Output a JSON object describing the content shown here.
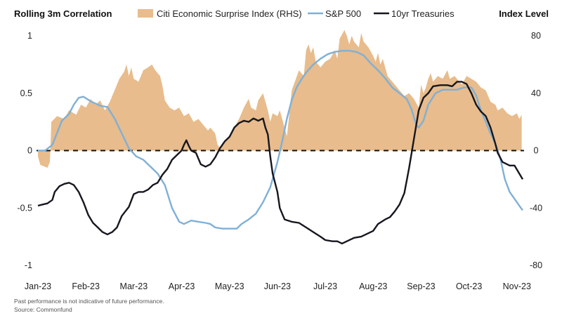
{
  "chart_data": {
    "type": "area+line",
    "title": "",
    "y_left_title": "Rolling 3m Correlation",
    "y_right_title": "Index Level",
    "y_left_ticks": [
      "1",
      "0.5",
      "0",
      "-0.5",
      "-1"
    ],
    "y_left_tick_values": [
      1,
      0.5,
      0,
      -0.5,
      -1
    ],
    "y_right_ticks": [
      "80",
      "40",
      "0",
      "-40",
      "-80"
    ],
    "y_right_tick_values": [
      80,
      40,
      0,
      -40,
      -80
    ],
    "ylim_left": [
      -1,
      1
    ],
    "ylim_right": [
      -80,
      80
    ],
    "x_tick_labels": [
      "Jan-23",
      "Feb-23",
      "Mar-23",
      "Apr-23",
      "May-23",
      "Jun-23",
      "Jul-23",
      "Aug-23",
      "Sep-23",
      "Oct-23",
      "Nov-23"
    ],
    "xlim": [
      0,
      10.15
    ],
    "zero_line": "dashed",
    "grid": false,
    "legend_position": "top",
    "series": [
      {
        "name": "Citi Economic Surprise Index (RHS)",
        "axis": "right",
        "kind": "area",
        "color": "#e8bc8c",
        "points": [
          [
            0,
            -4
          ],
          [
            0.05,
            -10
          ],
          [
            0.2,
            -12
          ],
          [
            0.25,
            -8
          ],
          [
            0.28,
            20
          ],
          [
            0.4,
            24
          ],
          [
            0.55,
            22
          ],
          [
            0.65,
            28
          ],
          [
            0.8,
            25
          ],
          [
            0.9,
            32
          ],
          [
            1.0,
            30
          ],
          [
            1.1,
            36
          ],
          [
            1.2,
            32
          ],
          [
            1.3,
            35
          ],
          [
            1.4,
            28
          ],
          [
            1.5,
            34
          ],
          [
            1.6,
            42
          ],
          [
            1.7,
            50
          ],
          [
            1.8,
            55
          ],
          [
            1.85,
            60
          ],
          [
            1.9,
            52
          ],
          [
            1.95,
            58
          ],
          [
            2.0,
            50
          ],
          [
            2.1,
            48
          ],
          [
            2.2,
            56
          ],
          [
            2.3,
            58
          ],
          [
            2.38,
            60
          ],
          [
            2.45,
            56
          ],
          [
            2.55,
            52
          ],
          [
            2.6,
            45
          ],
          [
            2.65,
            35
          ],
          [
            2.75,
            30
          ],
          [
            2.85,
            28
          ],
          [
            2.95,
            30
          ],
          [
            3.05,
            24
          ],
          [
            3.15,
            26
          ],
          [
            3.25,
            20
          ],
          [
            3.35,
            22
          ],
          [
            3.45,
            18
          ],
          [
            3.55,
            14
          ],
          [
            3.6,
            16
          ],
          [
            3.7,
            12
          ],
          [
            3.75,
            4
          ],
          [
            3.8,
            2
          ],
          [
            3.9,
            6
          ],
          [
            4.0,
            10
          ],
          [
            4.1,
            16
          ],
          [
            4.2,
            22
          ],
          [
            4.3,
            30
          ],
          [
            4.4,
            36
          ],
          [
            4.45,
            30
          ],
          [
            4.55,
            28
          ],
          [
            4.6,
            35
          ],
          [
            4.7,
            40
          ],
          [
            4.8,
            28
          ],
          [
            4.85,
            20
          ],
          [
            4.9,
            26
          ],
          [
            5.0,
            24
          ],
          [
            5.05,
            28
          ],
          [
            5.1,
            22
          ],
          [
            5.2,
            10
          ],
          [
            5.3,
            42
          ],
          [
            5.45,
            56
          ],
          [
            5.55,
            52
          ],
          [
            5.6,
            70
          ],
          [
            5.65,
            74
          ],
          [
            5.7,
            68
          ],
          [
            5.75,
            72
          ],
          [
            5.8,
            62
          ],
          [
            5.9,
            58
          ],
          [
            6.0,
            62
          ],
          [
            6.1,
            64
          ],
          [
            6.2,
            70
          ],
          [
            6.25,
            64
          ],
          [
            6.3,
            78
          ],
          [
            6.4,
            84
          ],
          [
            6.45,
            80
          ],
          [
            6.5,
            74
          ],
          [
            6.55,
            80
          ],
          [
            6.6,
            76
          ],
          [
            6.7,
            72
          ],
          [
            6.75,
            82
          ],
          [
            6.8,
            76
          ],
          [
            6.9,
            72
          ],
          [
            7.0,
            66
          ],
          [
            7.05,
            62
          ],
          [
            7.1,
            68
          ],
          [
            7.15,
            60
          ],
          [
            7.2,
            64
          ],
          [
            7.25,
            58
          ],
          [
            7.3,
            52
          ],
          [
            7.45,
            46
          ],
          [
            7.55,
            42
          ],
          [
            7.65,
            38
          ],
          [
            7.75,
            40
          ],
          [
            7.85,
            36
          ],
          [
            7.95,
            30
          ],
          [
            8.0,
            46
          ],
          [
            8.05,
            40
          ],
          [
            8.1,
            44
          ],
          [
            8.15,
            50
          ],
          [
            8.2,
            54
          ],
          [
            8.25,
            48
          ],
          [
            8.35,
            52
          ],
          [
            8.45,
            50
          ],
          [
            8.55,
            56
          ],
          [
            8.6,
            50
          ],
          [
            8.7,
            52
          ],
          [
            8.8,
            48
          ],
          [
            8.85,
            46
          ],
          [
            8.95,
            52
          ],
          [
            9.05,
            50
          ],
          [
            9.15,
            48
          ],
          [
            9.25,
            44
          ],
          [
            9.35,
            42
          ],
          [
            9.45,
            34
          ],
          [
            9.55,
            32
          ],
          [
            9.6,
            28
          ],
          [
            9.7,
            30
          ],
          [
            9.8,
            26
          ],
          [
            9.9,
            24
          ],
          [
            10.0,
            26
          ],
          [
            10.05,
            22
          ],
          [
            10.1,
            25
          ]
        ]
      },
      {
        "name": "S&P 500",
        "axis": "left",
        "kind": "line",
        "color": "#7fb0d6",
        "points": [
          [
            0,
            0
          ],
          [
            0.15,
            0
          ],
          [
            0.3,
            0.05
          ],
          [
            0.5,
            0.26
          ],
          [
            0.65,
            0.32
          ],
          [
            0.75,
            0.4
          ],
          [
            0.85,
            0.46
          ],
          [
            0.95,
            0.47
          ],
          [
            1.1,
            0.43
          ],
          [
            1.3,
            0.39
          ],
          [
            1.45,
            0.38
          ],
          [
            1.6,
            0.28
          ],
          [
            1.75,
            0.15
          ],
          [
            1.9,
            0.02
          ],
          [
            2.05,
            -0.05
          ],
          [
            2.2,
            -0.08
          ],
          [
            2.35,
            -0.14
          ],
          [
            2.5,
            -0.2
          ],
          [
            2.65,
            -0.3
          ],
          [
            2.8,
            -0.5
          ],
          [
            2.95,
            -0.62
          ],
          [
            3.05,
            -0.64
          ],
          [
            3.2,
            -0.61
          ],
          [
            3.35,
            -0.62
          ],
          [
            3.5,
            -0.63
          ],
          [
            3.6,
            -0.64
          ],
          [
            3.7,
            -0.67
          ],
          [
            3.85,
            -0.68
          ],
          [
            4.0,
            -0.68
          ],
          [
            4.15,
            -0.68
          ],
          [
            4.25,
            -0.64
          ],
          [
            4.4,
            -0.6
          ],
          [
            4.55,
            -0.55
          ],
          [
            4.7,
            -0.45
          ],
          [
            4.85,
            -0.32
          ],
          [
            5.0,
            -0.1
          ],
          [
            5.1,
            0.08
          ],
          [
            5.2,
            0.28
          ],
          [
            5.3,
            0.44
          ],
          [
            5.4,
            0.55
          ],
          [
            5.5,
            0.62
          ],
          [
            5.6,
            0.68
          ],
          [
            5.75,
            0.75
          ],
          [
            5.9,
            0.8
          ],
          [
            6.05,
            0.84
          ],
          [
            6.2,
            0.86
          ],
          [
            6.35,
            0.87
          ],
          [
            6.5,
            0.87
          ],
          [
            6.65,
            0.86
          ],
          [
            6.8,
            0.83
          ],
          [
            6.95,
            0.76
          ],
          [
            7.1,
            0.7
          ],
          [
            7.25,
            0.63
          ],
          [
            7.4,
            0.55
          ],
          [
            7.55,
            0.5
          ],
          [
            7.7,
            0.45
          ],
          [
            7.8,
            0.36
          ],
          [
            7.9,
            0.22
          ],
          [
            7.95,
            0.2
          ],
          [
            8.05,
            0.26
          ],
          [
            8.15,
            0.4
          ],
          [
            8.3,
            0.5
          ],
          [
            8.45,
            0.53
          ],
          [
            8.6,
            0.53
          ],
          [
            8.75,
            0.53
          ],
          [
            8.9,
            0.55
          ],
          [
            9.05,
            0.55
          ],
          [
            9.15,
            0.48
          ],
          [
            9.25,
            0.35
          ],
          [
            9.35,
            0.25
          ],
          [
            9.45,
            0.15
          ],
          [
            9.55,
            0.06
          ],
          [
            9.65,
            -0.06
          ],
          [
            9.75,
            -0.25
          ],
          [
            9.85,
            -0.36
          ],
          [
            9.95,
            -0.42
          ],
          [
            10.05,
            -0.48
          ],
          [
            10.12,
            -0.52
          ]
        ]
      },
      {
        "name": "10yr Treasuries",
        "axis": "left",
        "kind": "line",
        "color": "#16161f",
        "points": [
          [
            0,
            -0.48
          ],
          [
            0.1,
            -0.47
          ],
          [
            0.2,
            -0.46
          ],
          [
            0.3,
            -0.43
          ],
          [
            0.35,
            -0.36
          ],
          [
            0.45,
            -0.31
          ],
          [
            0.55,
            -0.29
          ],
          [
            0.65,
            -0.28
          ],
          [
            0.75,
            -0.3
          ],
          [
            0.85,
            -0.36
          ],
          [
            0.95,
            -0.45
          ],
          [
            1.05,
            -0.56
          ],
          [
            1.15,
            -0.63
          ],
          [
            1.25,
            -0.67
          ],
          [
            1.35,
            -0.71
          ],
          [
            1.45,
            -0.73
          ],
          [
            1.55,
            -0.71
          ],
          [
            1.65,
            -0.67
          ],
          [
            1.75,
            -0.57
          ],
          [
            1.9,
            -0.49
          ],
          [
            2.0,
            -0.38
          ],
          [
            2.1,
            -0.36
          ],
          [
            2.2,
            -0.36
          ],
          [
            2.3,
            -0.34
          ],
          [
            2.4,
            -0.3
          ],
          [
            2.5,
            -0.28
          ],
          [
            2.6,
            -0.21
          ],
          [
            2.7,
            -0.16
          ],
          [
            2.8,
            -0.08
          ],
          [
            2.9,
            -0.04
          ],
          [
            3.0,
            0.0
          ],
          [
            3.05,
            0.05
          ],
          [
            3.1,
            0.09
          ],
          [
            3.15,
            0.04
          ],
          [
            3.2,
            0.0
          ],
          [
            3.3,
            -0.02
          ],
          [
            3.4,
            -0.12
          ],
          [
            3.5,
            -0.14
          ],
          [
            3.6,
            -0.12
          ],
          [
            3.7,
            -0.06
          ],
          [
            3.8,
            0.02
          ],
          [
            3.9,
            0.08
          ],
          [
            4.0,
            0.12
          ],
          [
            4.1,
            0.2
          ],
          [
            4.2,
            0.24
          ],
          [
            4.3,
            0.26
          ],
          [
            4.4,
            0.25
          ],
          [
            4.5,
            0.28
          ],
          [
            4.6,
            0.26
          ],
          [
            4.7,
            0.28
          ],
          [
            4.75,
            0.2
          ],
          [
            4.8,
            0.14
          ],
          [
            4.85,
            -0.05
          ],
          [
            4.9,
            -0.2
          ],
          [
            5.0,
            -0.36
          ],
          [
            5.05,
            -0.5
          ],
          [
            5.15,
            -0.6
          ],
          [
            5.3,
            -0.62
          ],
          [
            5.45,
            -0.63
          ],
          [
            5.6,
            -0.67
          ],
          [
            5.75,
            -0.71
          ],
          [
            5.9,
            -0.75
          ],
          [
            6.0,
            -0.78
          ],
          [
            6.15,
            -0.79
          ],
          [
            6.25,
            -0.79
          ],
          [
            6.35,
            -0.81
          ],
          [
            6.45,
            -0.79
          ],
          [
            6.6,
            -0.76
          ],
          [
            6.75,
            -0.75
          ],
          [
            6.9,
            -0.72
          ],
          [
            7.0,
            -0.7
          ],
          [
            7.1,
            -0.64
          ],
          [
            7.25,
            -0.6
          ],
          [
            7.35,
            -0.58
          ],
          [
            7.45,
            -0.53
          ],
          [
            7.55,
            -0.47
          ],
          [
            7.65,
            -0.37
          ],
          [
            7.75,
            -0.15
          ],
          [
            7.85,
            0.1
          ],
          [
            7.95,
            0.35
          ],
          [
            8.05,
            0.46
          ],
          [
            8.15,
            0.5
          ],
          [
            8.25,
            0.56
          ],
          [
            8.4,
            0.57
          ],
          [
            8.55,
            0.57
          ],
          [
            8.65,
            0.56
          ],
          [
            8.75,
            0.6
          ],
          [
            8.85,
            0.6
          ],
          [
            8.95,
            0.58
          ],
          [
            9.05,
            0.5
          ],
          [
            9.15,
            0.4
          ],
          [
            9.25,
            0.34
          ],
          [
            9.35,
            0.3
          ],
          [
            9.45,
            0.2
          ],
          [
            9.55,
            0.06
          ],
          [
            9.6,
            -0.02
          ],
          [
            9.7,
            -0.1
          ],
          [
            9.85,
            -0.13
          ],
          [
            9.95,
            -0.13
          ],
          [
            10.05,
            -0.2
          ],
          [
            10.12,
            -0.25
          ]
        ]
      }
    ]
  },
  "footnotes": {
    "disclaimer": "Past performance is not indicative of future performance.",
    "source": "Source: Commonfund"
  }
}
